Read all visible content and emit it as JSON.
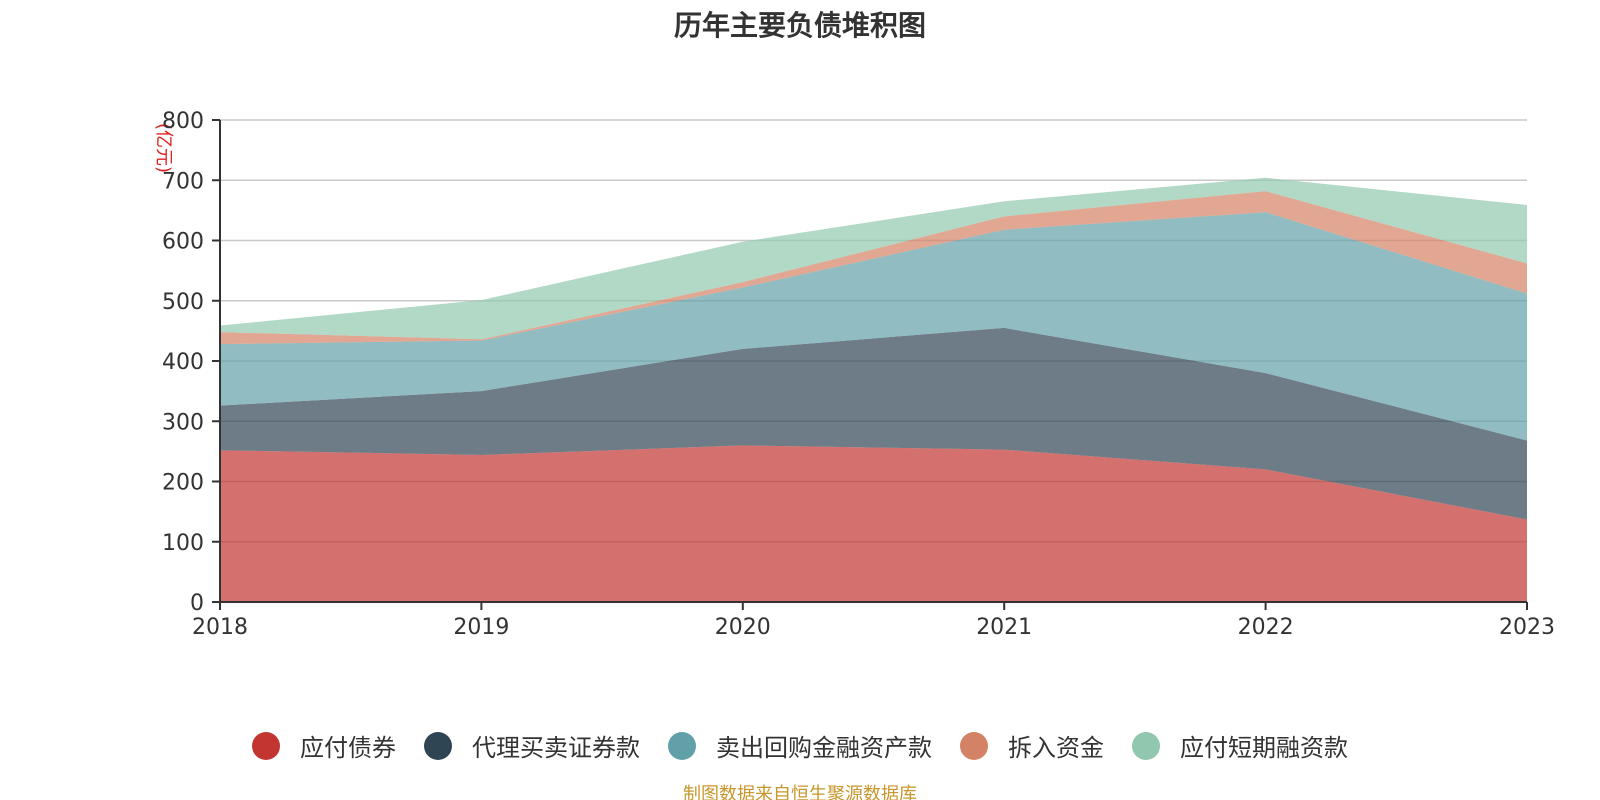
{
  "chart_data": {
    "type": "area",
    "stacked": true,
    "title": "历年主要负债堆积图",
    "y_unit": "(亿元)",
    "categories": [
      "2018",
      "2019",
      "2020",
      "2021",
      "2022",
      "2023"
    ],
    "ylim": [
      0,
      800
    ],
    "y_ticks": [
      "0",
      "100",
      "200",
      "300",
      "400",
      "500",
      "600",
      "700",
      "800"
    ],
    "grid": true,
    "legend_position": "bottom",
    "series": [
      {
        "name": "应付债券",
        "color": "#c23531",
        "values": [
          252,
          244,
          260,
          253,
          220,
          137
        ]
      },
      {
        "name": "代理买卖证券款",
        "color": "#2f4554",
        "values": [
          74,
          106,
          160,
          202,
          160,
          131
        ]
      },
      {
        "name": "卖出回购金融资产款",
        "color": "#61a0a8",
        "values": [
          102,
          84,
          102,
          163,
          267,
          244
        ]
      },
      {
        "name": "拆入资金",
        "color": "#d48265",
        "values": [
          20,
          2,
          9,
          22,
          35,
          50
        ]
      },
      {
        "name": "应付短期融资款",
        "color": "#91c7ae",
        "values": [
          11,
          65,
          67,
          25,
          22,
          97
        ]
      }
    ],
    "source": "制图数据来自恒生聚源数据库"
  }
}
